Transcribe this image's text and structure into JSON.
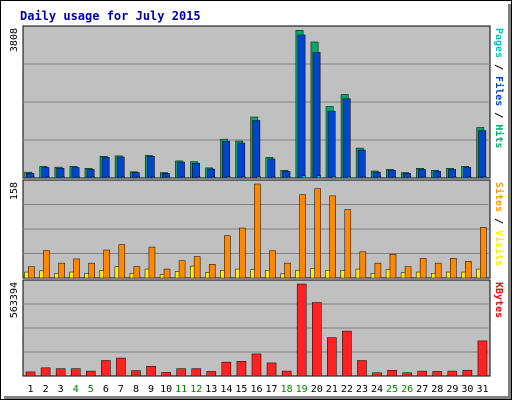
{
  "chart_data": {
    "type": "bar",
    "title": "Daily usage for July 2015",
    "categories": [
      "1",
      "2",
      "3",
      "4",
      "5",
      "6",
      "7",
      "8",
      "9",
      "10",
      "11",
      "12",
      "13",
      "14",
      "15",
      "16",
      "17",
      "18",
      "19",
      "20",
      "21",
      "22",
      "23",
      "24",
      "25",
      "26",
      "27",
      "28",
      "29",
      "30",
      "31"
    ],
    "weekend_days": [
      "4",
      "5",
      "11",
      "12",
      "18",
      "19",
      "25",
      "26"
    ],
    "grid": true,
    "panels": [
      {
        "id": "pages-files-hits",
        "max_label": "3808",
        "ylim": [
          0,
          3808
        ],
        "side_label_parts": [
          {
            "text": "Pages",
            "color": "#00c0c0"
          },
          {
            "text": " / ",
            "color": "#000000"
          },
          {
            "text": "Files",
            "color": "#0044cc"
          },
          {
            "text": " / ",
            "color": "#000000"
          },
          {
            "text": "Hits",
            "color": "#00aa66"
          }
        ],
        "series": [
          {
            "name": "Hits",
            "color": "#00aa66",
            "values": [
              150,
              300,
              280,
              300,
              250,
              560,
              570,
              160,
              580,
              140,
              440,
              420,
              260,
              1000,
              950,
              1570,
              530,
              200,
              3800,
              3500,
              1840,
              2150,
              770,
              180,
              220,
              140,
              250,
              200,
              250,
              300,
              1300
            ]
          },
          {
            "name": "Files",
            "color": "#0044cc",
            "values": [
              120,
              270,
              250,
              270,
              220,
              530,
              540,
              140,
              560,
              120,
              410,
              380,
              230,
              940,
              900,
              1480,
              490,
              170,
              3680,
              3230,
              1720,
              2040,
              720,
              150,
              200,
              120,
              220,
              170,
              220,
              270,
              1220
            ]
          },
          {
            "name": "Pages",
            "color": "#00c0c0",
            "values": [
              10,
              15,
              15,
              15,
              10,
              20,
              20,
              10,
              20,
              10,
              15,
              15,
              10,
              30,
              30,
              40,
              20,
              10,
              60,
              60,
              40,
              40,
              20,
              10,
              10,
              10,
              15,
              10,
              15,
              15,
              30
            ]
          }
        ]
      },
      {
        "id": "visits-sites",
        "max_label": "158",
        "ylim": [
          0,
          158
        ],
        "side_label_parts": [
          {
            "text": "Sites",
            "color": "#ff9900"
          },
          {
            "text": " / ",
            "color": "#000000"
          },
          {
            "text": "Visits",
            "color": "#ffee00"
          }
        ],
        "series": [
          {
            "name": "Sites",
            "color": "#ff8800",
            "values": [
              19,
              46,
              25,
              32,
              25,
              47,
              56,
              19,
              52,
              15,
              29,
              36,
              23,
              71,
              84,
              158,
              46,
              25,
              140,
              150,
              138,
              115,
              44,
              25,
              40,
              19,
              33,
              25,
              33,
              28,
              85
            ]
          },
          {
            "name": "Visits",
            "color": "#ffee00",
            "values": [
              10,
              12,
              8,
              10,
              8,
              13,
              19,
              8,
              15,
              6,
              11,
              20,
              9,
              13,
              15,
              14,
              13,
              7,
              13,
              16,
              13,
              13,
              15,
              8,
              14,
              9,
              10,
              8,
              10,
              10,
              15
            ]
          }
        ]
      },
      {
        "id": "kbytes",
        "max_label": "563394",
        "ylim": [
          0,
          563394
        ],
        "side_label_parts": [
          {
            "text": "KBytes",
            "color": "#ff0000"
          }
        ],
        "series": [
          {
            "name": "KBytes",
            "color": "#ff2222",
            "values": [
              25000,
              50000,
              45000,
              45000,
              30000,
              95000,
              110000,
              33000,
              60000,
              22000,
              45000,
              45000,
              28000,
              85000,
              90000,
              135000,
              80000,
              30000,
              563394,
              450000,
              235000,
              275000,
              95000,
              20000,
              35000,
              20000,
              30000,
              28000,
              30000,
              35000,
              215000
            ]
          }
        ]
      }
    ]
  },
  "colors": {
    "title": "#0000aa",
    "panel_bg": "#c0c0c0",
    "grid": "#808080",
    "weekend_label": "#008000",
    "weekday_label": "#000000"
  }
}
